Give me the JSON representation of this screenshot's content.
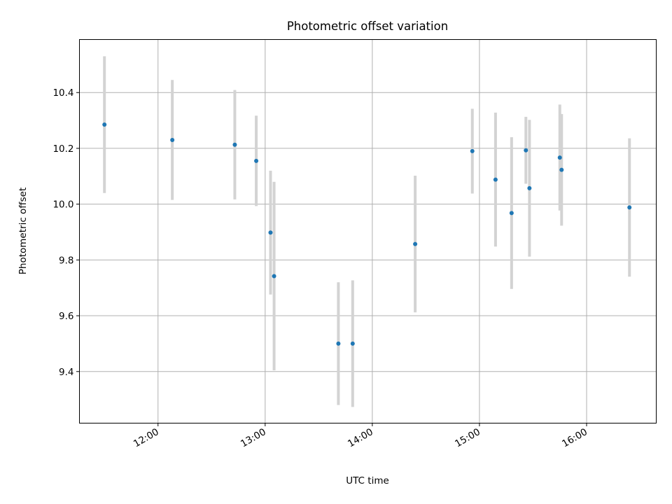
{
  "chart_data": {
    "type": "scatter",
    "title": "Photometric offset variation",
    "xlabel": "UTC time",
    "ylabel": "Photometric offset",
    "x_axis_type": "time",
    "xlim": [
      "11:16",
      "16:39"
    ],
    "ylim": [
      9.215,
      10.59
    ],
    "grid": true,
    "x_ticks": [
      "12:00",
      "13:00",
      "14:00",
      "15:00",
      "16:00"
    ],
    "y_ticks": [
      9.4,
      9.6,
      9.8,
      10.0,
      10.2,
      10.4
    ],
    "y_tick_labels": [
      "9.4",
      "9.6",
      "9.8",
      "10.0",
      "10.2",
      "10.4"
    ],
    "marker_color": "#1f77b4",
    "errorbar_color": "#d3d3d3",
    "points": [
      {
        "x": "11:30",
        "y": 10.285,
        "err": 0.245
      },
      {
        "x": "12:08",
        "y": 10.23,
        "err": 0.215
      },
      {
        "x": "12:43",
        "y": 10.213,
        "err": 0.196
      },
      {
        "x": "12:55",
        "y": 10.155,
        "err": 0.162
      },
      {
        "x": "13:03",
        "y": 9.898,
        "err": 0.222
      },
      {
        "x": "13:05",
        "y": 9.742,
        "err": 0.338
      },
      {
        "x": "13:41",
        "y": 9.5,
        "err": 0.22
      },
      {
        "x": "13:49",
        "y": 9.5,
        "err": 0.227
      },
      {
        "x": "14:24",
        "y": 9.857,
        "err": 0.245
      },
      {
        "x": "14:56",
        "y": 10.19,
        "err": 0.152
      },
      {
        "x": "15:09",
        "y": 10.088,
        "err": 0.24
      },
      {
        "x": "15:18",
        "y": 9.968,
        "err": 0.272
      },
      {
        "x": "15:26",
        "y": 10.193,
        "err": 0.12
      },
      {
        "x": "15:28",
        "y": 10.057,
        "err": 0.245
      },
      {
        "x": "15:45",
        "y": 10.167,
        "err": 0.19
      },
      {
        "x": "15:46",
        "y": 10.123,
        "err": 0.2
      },
      {
        "x": "16:24",
        "y": 9.988,
        "err": 0.248
      }
    ]
  }
}
